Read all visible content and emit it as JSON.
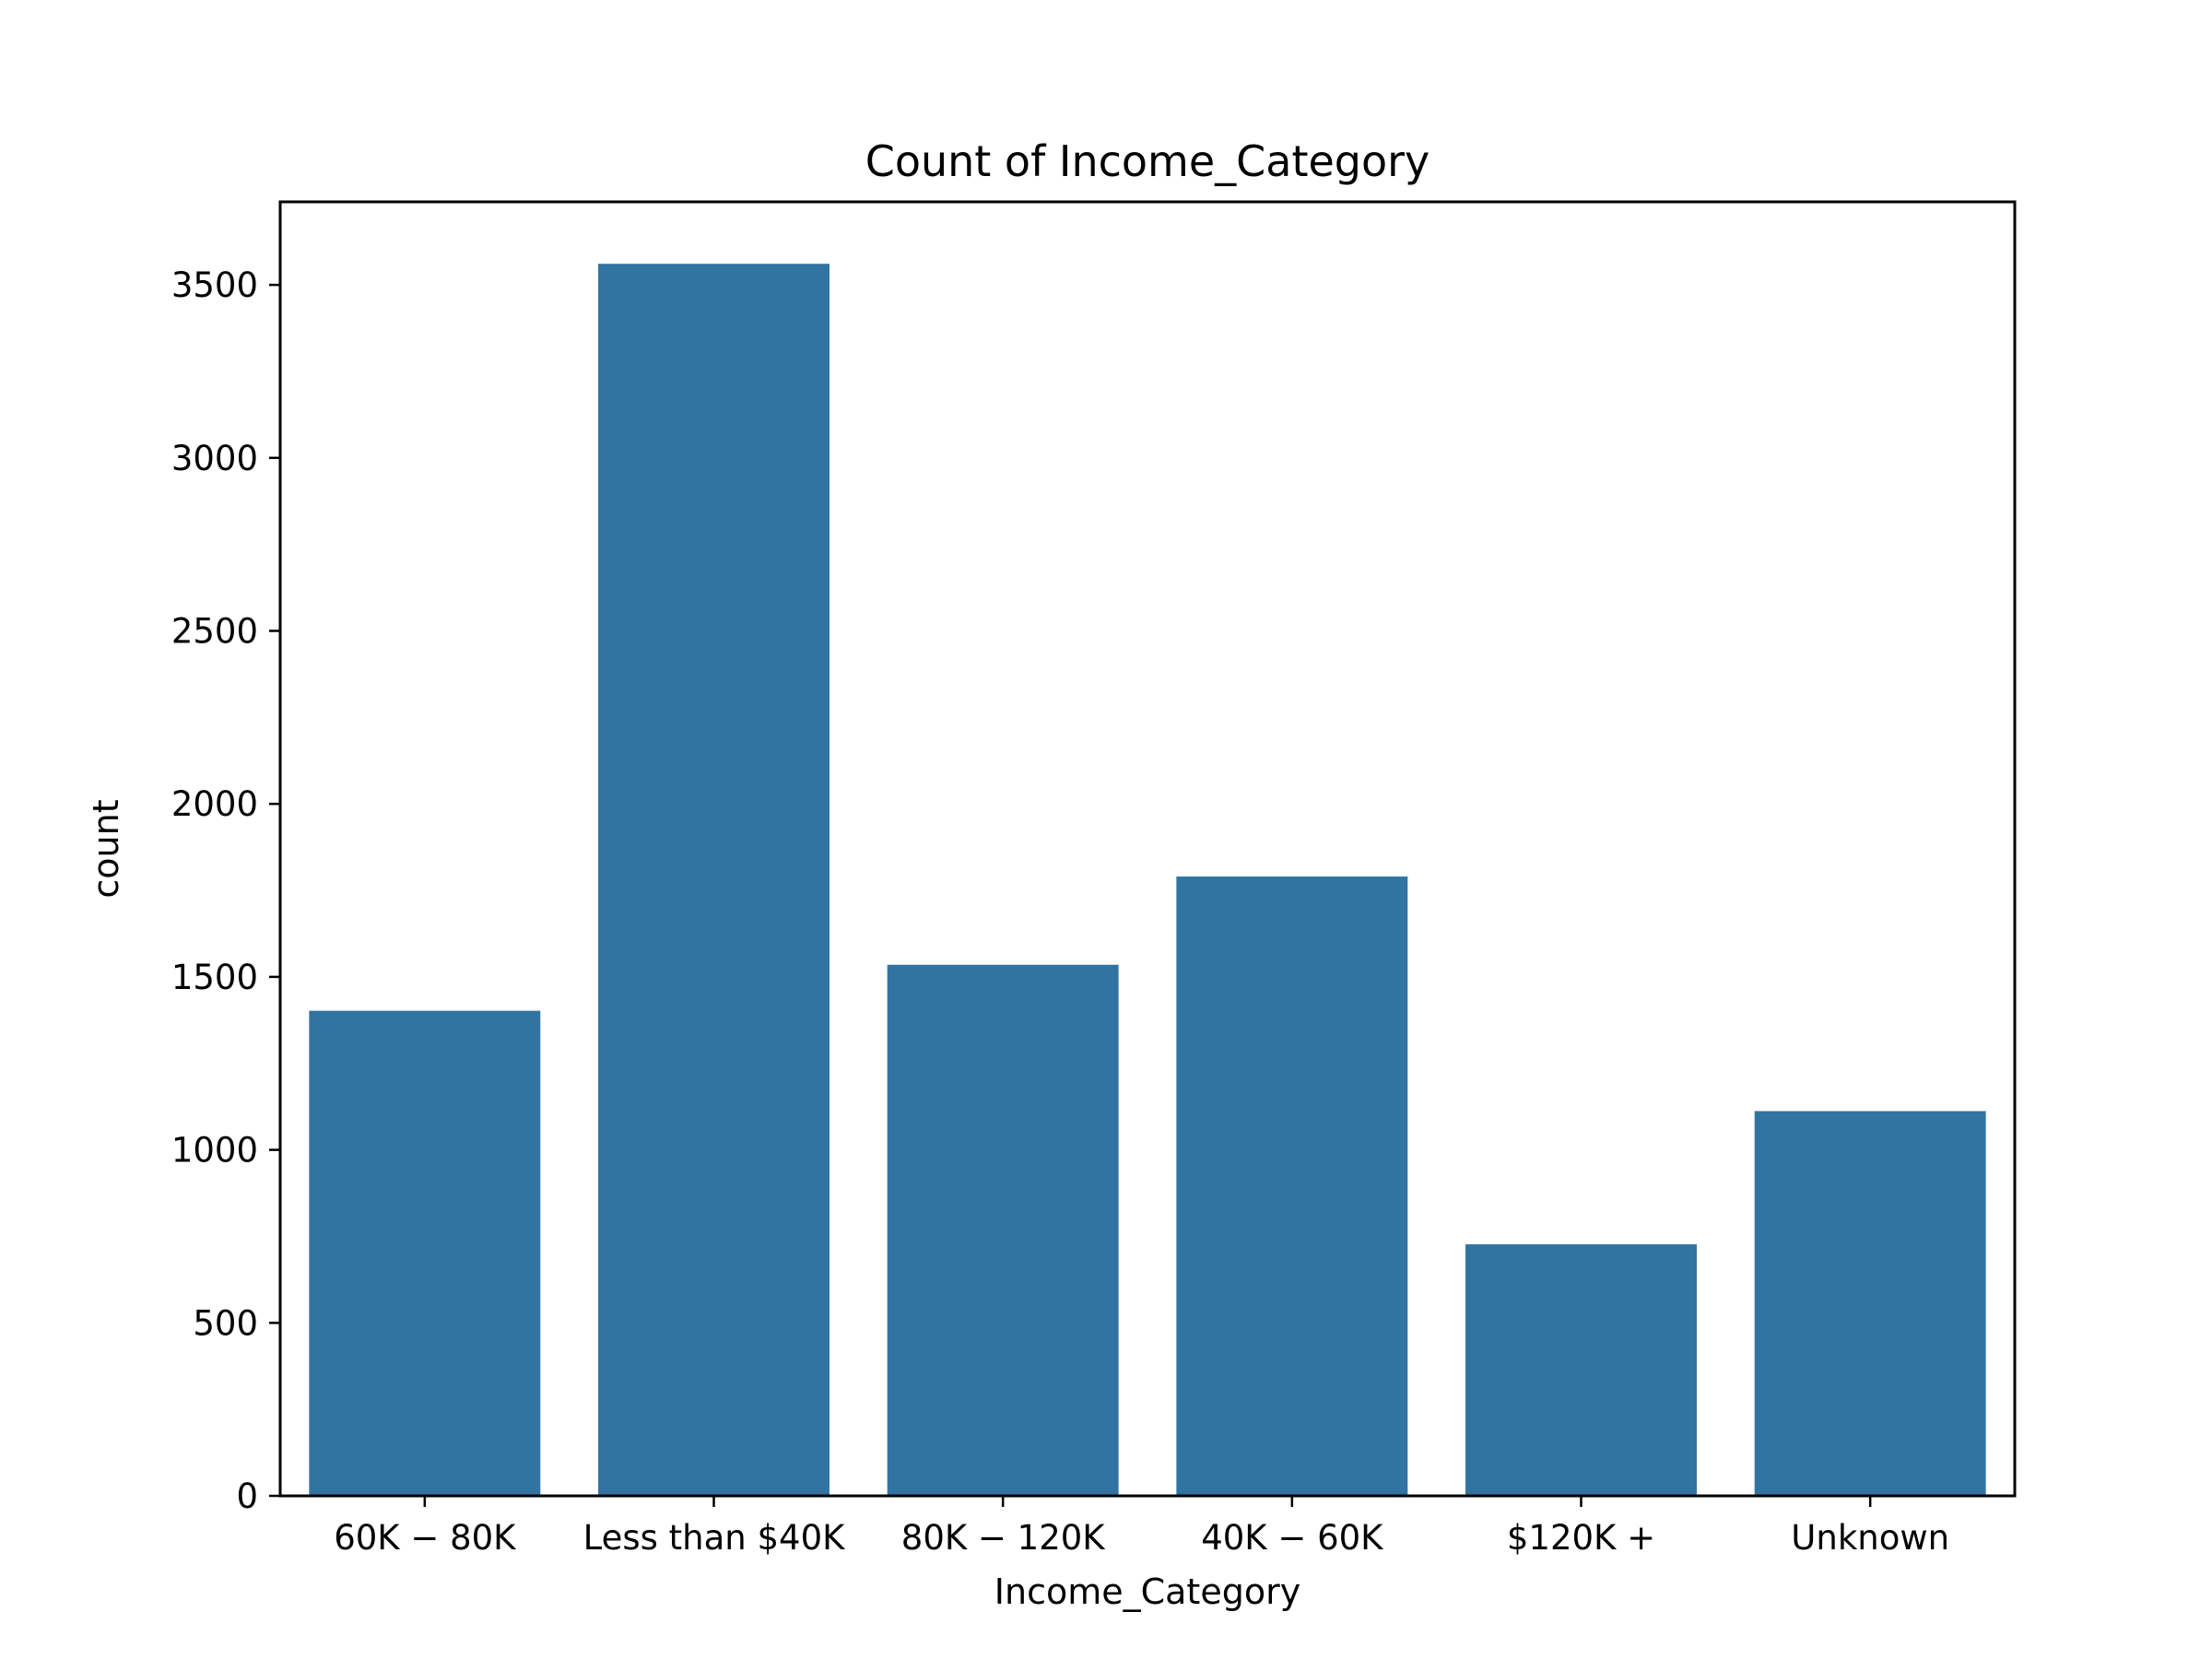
{
  "chart_data": {
    "type": "bar",
    "title": "Count of Income_Category",
    "xlabel": "Income_Category",
    "ylabel": "count",
    "categories": [
      "$60K - $80K",
      "Less than $40K",
      "$80K - $120K",
      "$40K - $60K",
      "$120K +",
      "Unknown"
    ],
    "category_labels": [
      "60K − 80K",
      "Less than $40K",
      "80K − 120K",
      "40K − 60K",
      "$120K +",
      "Unknown"
    ],
    "values": [
      1402,
      3561,
      1535,
      1790,
      727,
      1112
    ],
    "ylim": [
      0,
      3740
    ],
    "yticks": [
      0,
      500,
      1000,
      1500,
      2000,
      2500,
      3000,
      3500
    ],
    "ytick_labels": [
      "0",
      "500",
      "1000",
      "1500",
      "2000",
      "2500",
      "3000",
      "3500"
    ],
    "grid": false,
    "legend": "none",
    "bar_color": "#3274a1",
    "axis_color": "#000000"
  }
}
